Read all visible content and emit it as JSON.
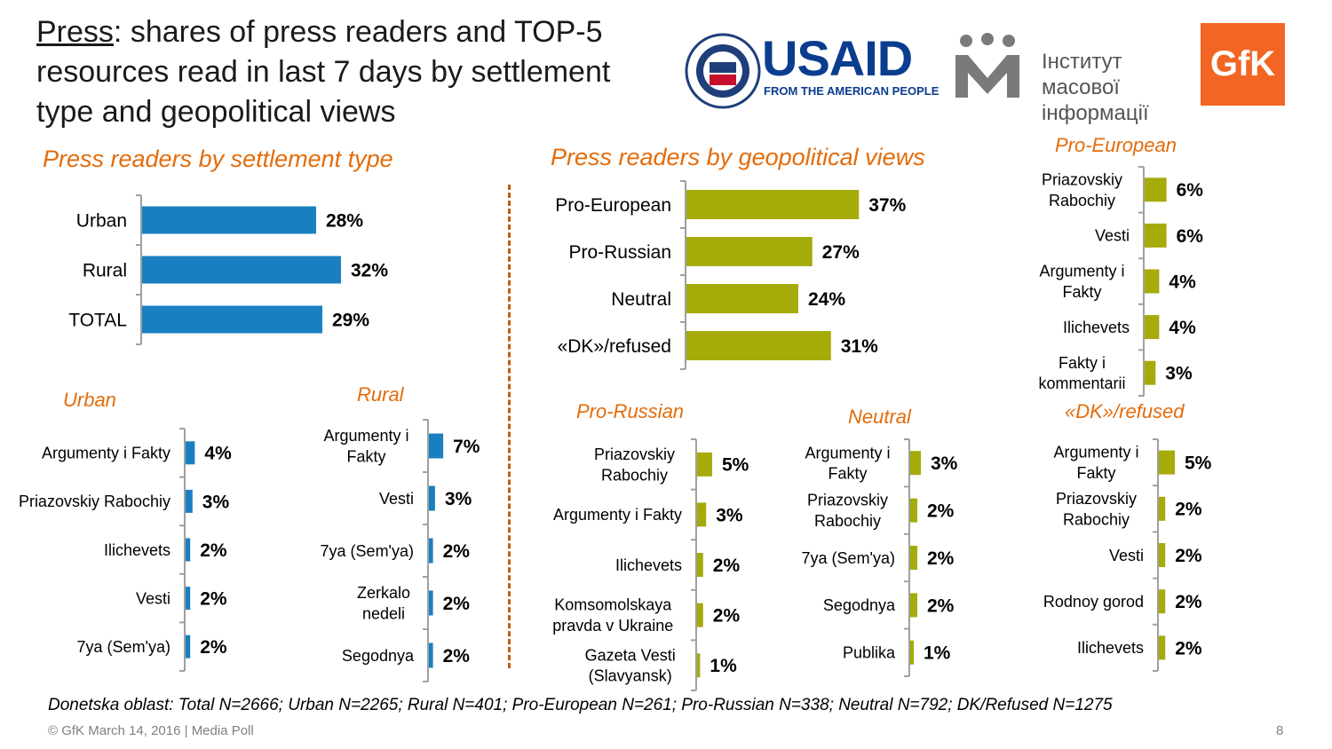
{
  "title": {
    "underlined": "Press",
    "rest": ": shares of press readers and TOP-5 resources read in last 7 days by settlement type and geopolitical views"
  },
  "logos": {
    "usaid": "USAID",
    "usaid_tagline": "FROM THE AMERICAN PEOPLE",
    "imi_line1": "Інститут масової",
    "imi_line2": "інформації",
    "gfk": "GfK"
  },
  "colors": {
    "blue": "#1a7fc1",
    "olive": "#a5ab09",
    "orange": "#e36c0a",
    "axis": "#a0a0a0"
  },
  "footnote": "Donetska oblast: Total N=2666; Urban N=2265; Rural N=401; Pro-European N=261; Pro-Russian N=338; Neutral N=792; DK/Refused N=1275",
  "footer": {
    "left": "© GfK March 14, 2016 | Media Poll",
    "page": "8"
  },
  "chart_data": [
    {
      "id": "settlement",
      "type": "bar",
      "orientation": "horizontal",
      "title": "Press readers by settlement type",
      "categories": [
        "Urban",
        "Rural",
        "TOTAL"
      ],
      "values": [
        28,
        32,
        29
      ],
      "labels": [
        "28%",
        "32%",
        "29%"
      ],
      "color": "#1a7fc1"
    },
    {
      "id": "urban",
      "type": "bar",
      "orientation": "horizontal",
      "title": "Urban",
      "categories": [
        "Argumenty i Fakty",
        "Priazovskiy Rabochiy",
        "Ilichevets",
        "Vesti",
        "7ya (Sem'ya)"
      ],
      "values": [
        4,
        3,
        2,
        2,
        2
      ],
      "labels": [
        "4%",
        "3%",
        "2%",
        "2%",
        "2%"
      ],
      "color": "#1a7fc1"
    },
    {
      "id": "rural",
      "type": "bar",
      "orientation": "horizontal",
      "title": "Rural",
      "categories": [
        "Argumenty i Fakty",
        "Vesti",
        "7ya (Sem'ya)",
        "Zerkalo nedeli",
        "Segodnya"
      ],
      "values": [
        7,
        3,
        2,
        2,
        2
      ],
      "labels": [
        "7%",
        "3%",
        "2%",
        "2%",
        "2%"
      ],
      "color": "#1a7fc1"
    },
    {
      "id": "geopolitical",
      "type": "bar",
      "orientation": "horizontal",
      "title": "Press readers by geopolitical views",
      "categories": [
        "Pro-European",
        "Pro-Russian",
        "Neutral",
        "«DK»/refused"
      ],
      "values": [
        37,
        27,
        24,
        31
      ],
      "labels": [
        "37%",
        "27%",
        "24%",
        "31%"
      ],
      "color": "#a5ab09"
    },
    {
      "id": "pro_european",
      "type": "bar",
      "orientation": "horizontal",
      "title": "Pro-European",
      "categories": [
        "Priazovskiy Rabochiy",
        "Vesti",
        "Argumenty i Fakty",
        "Ilichevets",
        "Fakty i kommentarii"
      ],
      "values": [
        6,
        6,
        4,
        4,
        3
      ],
      "labels": [
        "6%",
        "6%",
        "4%",
        "4%",
        "3%"
      ],
      "color": "#a5ab09"
    },
    {
      "id": "pro_russian",
      "type": "bar",
      "orientation": "horizontal",
      "title": "Pro-Russian",
      "categories": [
        "Priazovskiy Rabochiy",
        "Argumenty i Fakty",
        "Ilichevets",
        "Komsomolskaya pravda v Ukraine",
        "Gazeta Vesti (Slavyansk)"
      ],
      "values": [
        5,
        3,
        2,
        2,
        1
      ],
      "labels": [
        "5%",
        "3%",
        "2%",
        "2%",
        "1%"
      ],
      "color": "#a5ab09"
    },
    {
      "id": "neutral",
      "type": "bar",
      "orientation": "horizontal",
      "title": "Neutral",
      "categories": [
        "Argumenty i Fakty",
        "Priazovskiy Rabochiy",
        "7ya (Sem'ya)",
        "Segodnya",
        "Publika"
      ],
      "values": [
        3,
        2,
        2,
        2,
        1
      ],
      "labels": [
        "3%",
        "2%",
        "2%",
        "2%",
        "1%"
      ],
      "color": "#a5ab09"
    },
    {
      "id": "dk_refused",
      "type": "bar",
      "orientation": "horizontal",
      "title": "«DK»/refused",
      "categories": [
        "Argumenty i Fakty",
        "Priazovskiy Rabochiy",
        "Vesti",
        "Rodnoy gorod",
        "Ilichevets"
      ],
      "values": [
        5,
        2,
        2,
        2,
        2
      ],
      "labels": [
        "5%",
        "2%",
        "2%",
        "2%",
        "2%"
      ],
      "color": "#a5ab09"
    }
  ]
}
